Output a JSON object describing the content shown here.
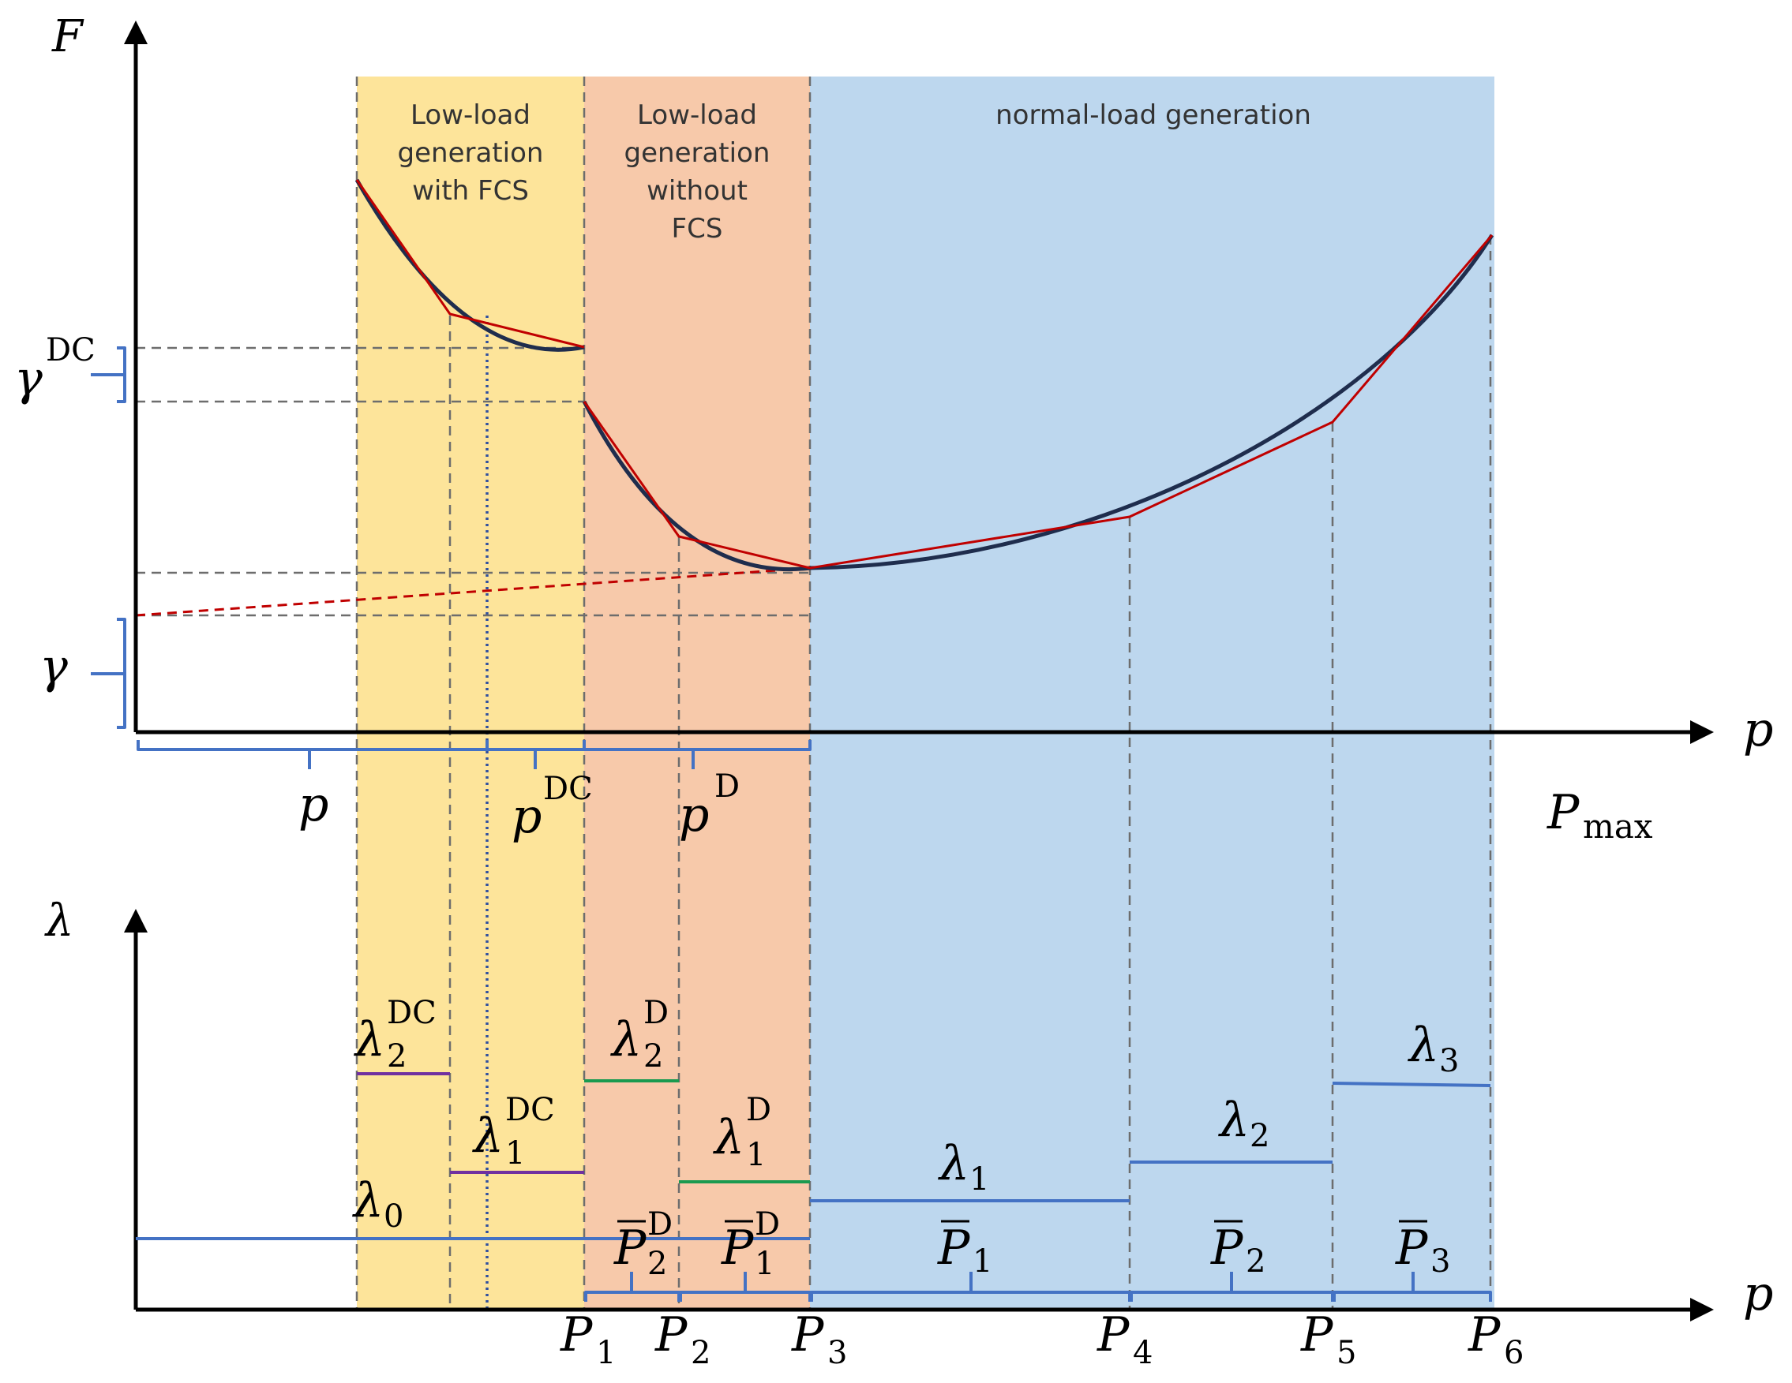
{
  "regions": {
    "low_with_fcs": [
      "Low-load",
      "generation",
      "with FCS"
    ],
    "low_without_fcs": [
      "Low-load",
      "generation",
      "without",
      "FCS"
    ],
    "normal": "normal-load generation"
  },
  "colors": {
    "low_with_fcs": "#fde49a",
    "low_without_fcs": "#f7c9aa",
    "normal": "#bdd7ee",
    "cost_curve": "#1f2d4d",
    "linear_approx": "#c00000",
    "bracket": "#4472c4",
    "lambda_dc": "#7030a0",
    "lambda_d": "#1a9a50",
    "lambda": "#4472c4"
  },
  "top_axis": {
    "y_label": "F",
    "x_label": "p",
    "gamma": "γ",
    "gamma_dc_base": "γ",
    "gamma_dc_sup": "DC",
    "p": "p",
    "p_dc_base": "p",
    "p_dc_sup": "DC",
    "p_d_base": "p",
    "p_d_sup": "D",
    "pmax_base": "P",
    "pmax_sub": "max"
  },
  "bottom_axis": {
    "y_label": "λ",
    "x_label": "p",
    "lambda0": {
      "base": "λ",
      "sub": "0"
    },
    "lambda2_dc": {
      "base": "λ",
      "sub": "2",
      "sup": "DC"
    },
    "lambda1_dc": {
      "base": "λ",
      "sub": "1",
      "sup": "DC"
    },
    "lambda2_d": {
      "base": "λ",
      "sub": "2",
      "sup": "D"
    },
    "lambda1_d": {
      "base": "λ",
      "sub": "1",
      "sup": "D"
    },
    "lambda1": {
      "base": "λ",
      "sub": "1"
    },
    "lambda2": {
      "base": "λ",
      "sub": "2"
    },
    "lambda3": {
      "base": "λ",
      "sub": "3"
    },
    "pbar2_d": {
      "base": "P",
      "sub": "2",
      "sup": "D"
    },
    "pbar1_d": {
      "base": "P",
      "sub": "1",
      "sup": "D"
    },
    "pbar1": {
      "base": "P",
      "sub": "1"
    },
    "pbar2": {
      "base": "P",
      "sub": "2"
    },
    "pbar3": {
      "base": "P",
      "sub": "3"
    },
    "ticks": [
      {
        "base": "P",
        "sub": "1"
      },
      {
        "base": "P",
        "sub": "2"
      },
      {
        "base": "P",
        "sub": "3"
      },
      {
        "base": "P",
        "sub": "4"
      },
      {
        "base": "P",
        "sub": "5"
      },
      {
        "base": "P",
        "sub": "6"
      }
    ]
  }
}
